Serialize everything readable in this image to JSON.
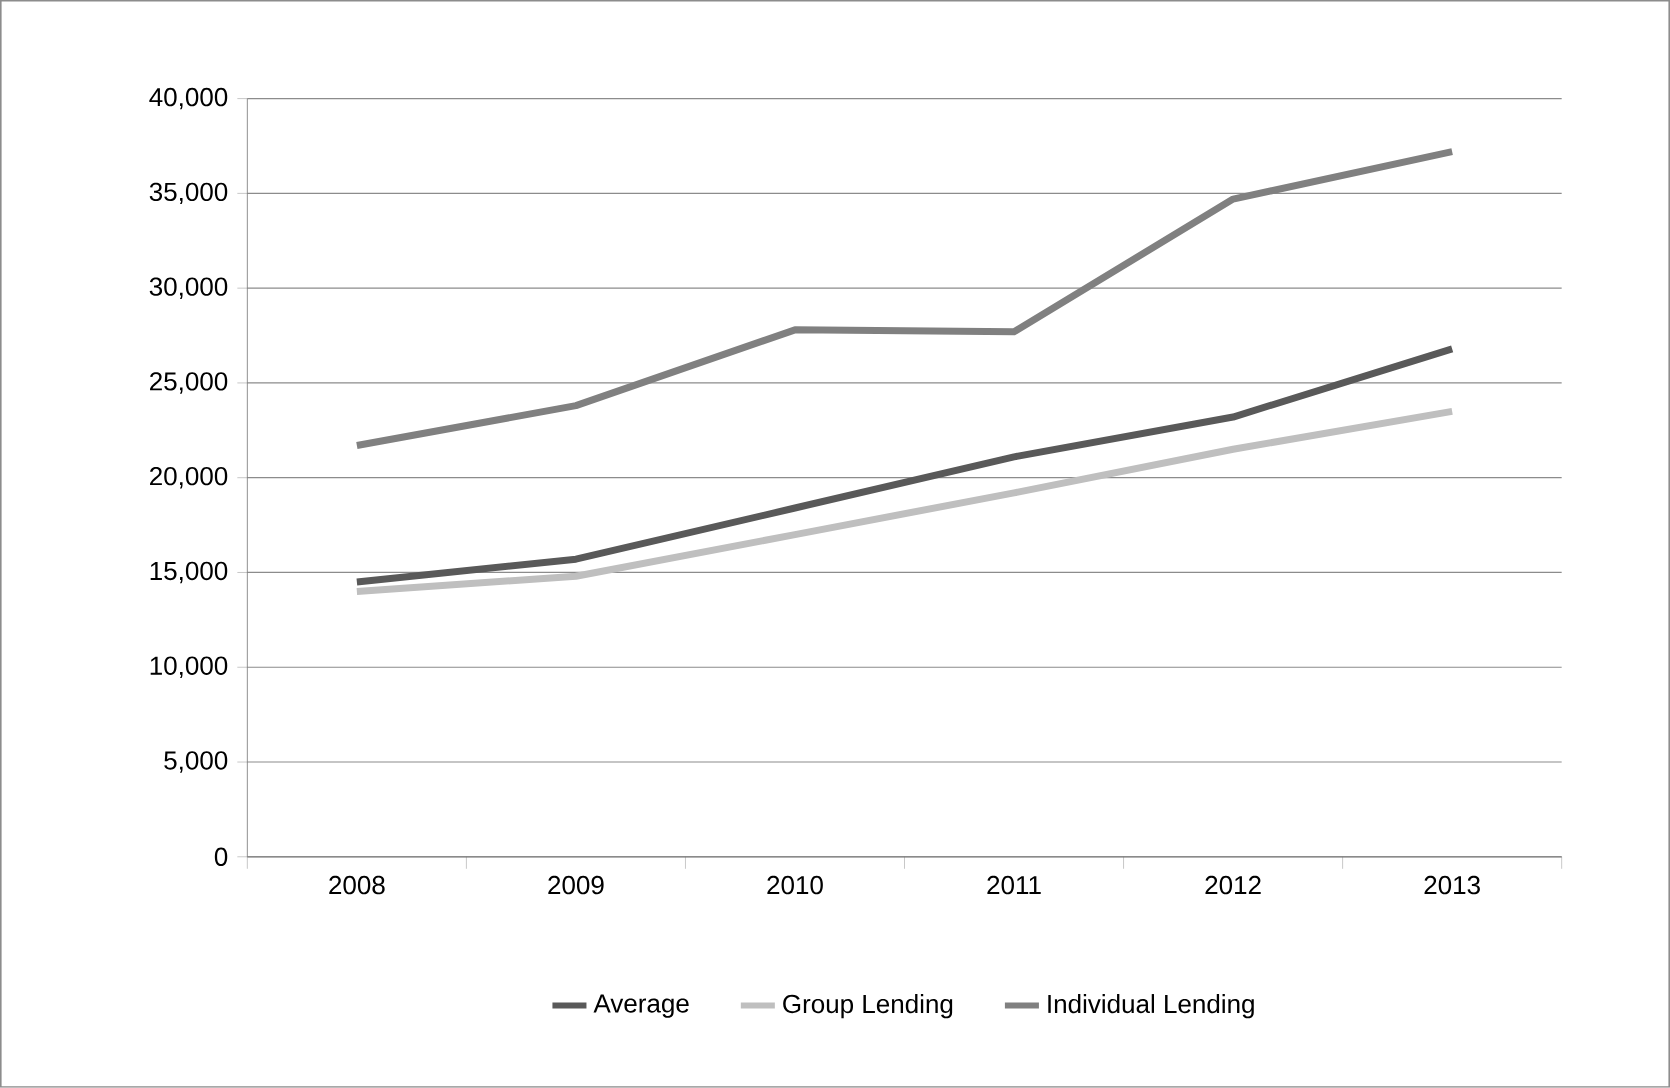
{
  "chart_data": {
    "type": "line",
    "categories": [
      "2008",
      "2009",
      "2010",
      "2011",
      "2012",
      "2013"
    ],
    "series": [
      {
        "name": "Average",
        "color": "#595959",
        "values": [
          14500,
          15700,
          18400,
          21100,
          23200,
          26800
        ]
      },
      {
        "name": "Group Lending",
        "color": "#bfbfbf",
        "values": [
          14000,
          14800,
          17000,
          19200,
          21500,
          23500
        ]
      },
      {
        "name": "Individual Lending",
        "color": "#808080",
        "values": [
          21700,
          23800,
          27800,
          27700,
          34700,
          37200
        ]
      }
    ],
    "ylim": [
      0,
      40000
    ],
    "yticks": [
      {
        "value": 0,
        "label": "0"
      },
      {
        "value": 5000,
        "label": "5,000"
      },
      {
        "value": 10000,
        "label": "10,000"
      },
      {
        "value": 15000,
        "label": "15,000"
      },
      {
        "value": 20000,
        "label": "20,000"
      },
      {
        "value": 25000,
        "label": "25,000"
      },
      {
        "value": 30000,
        "label": "30,000"
      },
      {
        "value": 35000,
        "label": "35,000"
      },
      {
        "value": 40000,
        "label": "40,000"
      }
    ],
    "grid": "y",
    "legend": "bottom",
    "marker": "none",
    "line_style": "solid"
  }
}
